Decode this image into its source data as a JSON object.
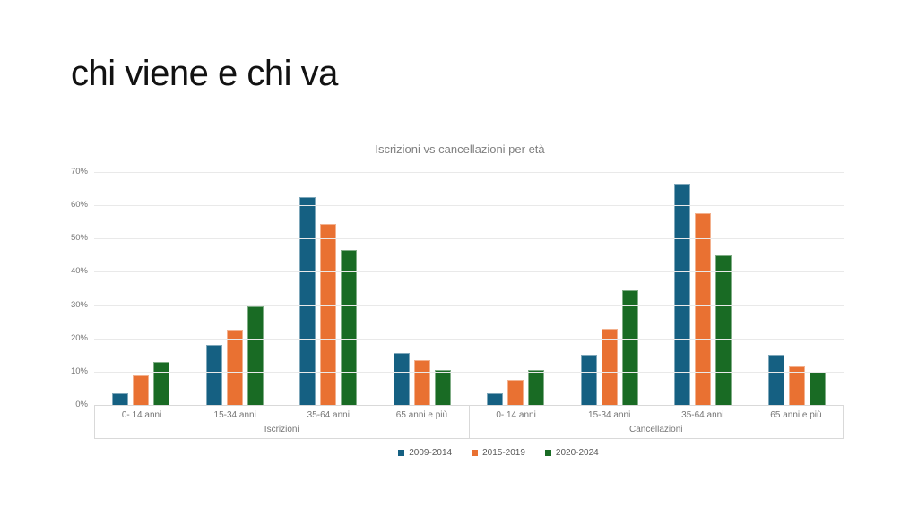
{
  "slide": {
    "title": "chi viene e chi va"
  },
  "chart_data": {
    "type": "bar",
    "title": "Iscrizioni vs cancellazioni per età",
    "xlabel": "",
    "ylabel": "",
    "ylim": [
      0,
      70
    ],
    "y_tick_step": 10,
    "y_tick_suffix": "%",
    "grid": true,
    "legend_position": "bottom",
    "group_labels": [
      "Iscrizioni",
      "Cancellazioni"
    ],
    "categories": [
      "0- 14 anni",
      "15-34 anni",
      "35-64 anni",
      "65 anni e più"
    ],
    "series": [
      {
        "name": "2009-2014",
        "color": "#156082",
        "values": {
          "Iscrizioni": [
            3.5,
            18,
            62.5,
            15.5
          ],
          "Cancellazioni": [
            3.5,
            15,
            66.5,
            15
          ]
        }
      },
      {
        "name": "2015-2019",
        "color": "#E97132",
        "values": {
          "Iscrizioni": [
            9,
            22.5,
            54.5,
            13.5
          ],
          "Cancellazioni": [
            7.5,
            23,
            57.5,
            11.5
          ]
        }
      },
      {
        "name": "2020-2024",
        "color": "#196B24",
        "values": {
          "Iscrizioni": [
            13,
            29.5,
            46.5,
            10.5
          ],
          "Cancellazioni": [
            10.5,
            34.5,
            45,
            10
          ]
        }
      }
    ]
  }
}
